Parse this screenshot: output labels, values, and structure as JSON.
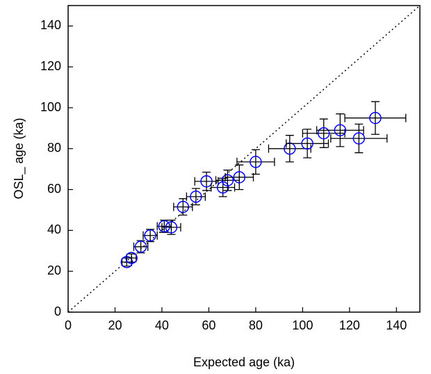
{
  "chart_data": {
    "type": "scatter",
    "xlabel": "Expected age (ka)",
    "ylabel": "OSL_ age (ka)",
    "xlim": [
      0,
      150
    ],
    "ylim": [
      0,
      150
    ],
    "xticks": [
      0,
      20,
      40,
      60,
      80,
      100,
      120,
      140
    ],
    "yticks": [
      0,
      20,
      40,
      60,
      80,
      100,
      120,
      140
    ],
    "identity_line": {
      "x": [
        0,
        150
      ],
      "y": [
        0,
        150
      ]
    },
    "series": [
      {
        "color": "#0000ff",
        "errorbar_color": "#000000",
        "x": [
          25,
          27,
          31,
          35,
          41,
          44,
          49,
          54.5,
          59,
          66,
          68,
          73,
          80,
          94.5,
          102,
          109,
          116,
          124,
          131
        ],
        "values": [
          24.5,
          26.5,
          32,
          37.5,
          42,
          41.5,
          51.5,
          56.5,
          64,
          61,
          64.5,
          66,
          73.5,
          80,
          82.5,
          87.5,
          89,
          85,
          95
        ],
        "xerr": [
          2,
          2,
          3,
          3,
          3,
          4,
          4,
          4,
          5,
          5,
          5,
          6,
          8,
          9,
          9,
          9,
          10,
          12,
          13
        ],
        "yerr": [
          2,
          2,
          3,
          3,
          3,
          3.5,
          4,
          4,
          4.5,
          4.5,
          5,
          6,
          6,
          6.5,
          7,
          7,
          8,
          7,
          8
        ]
      }
    ]
  }
}
